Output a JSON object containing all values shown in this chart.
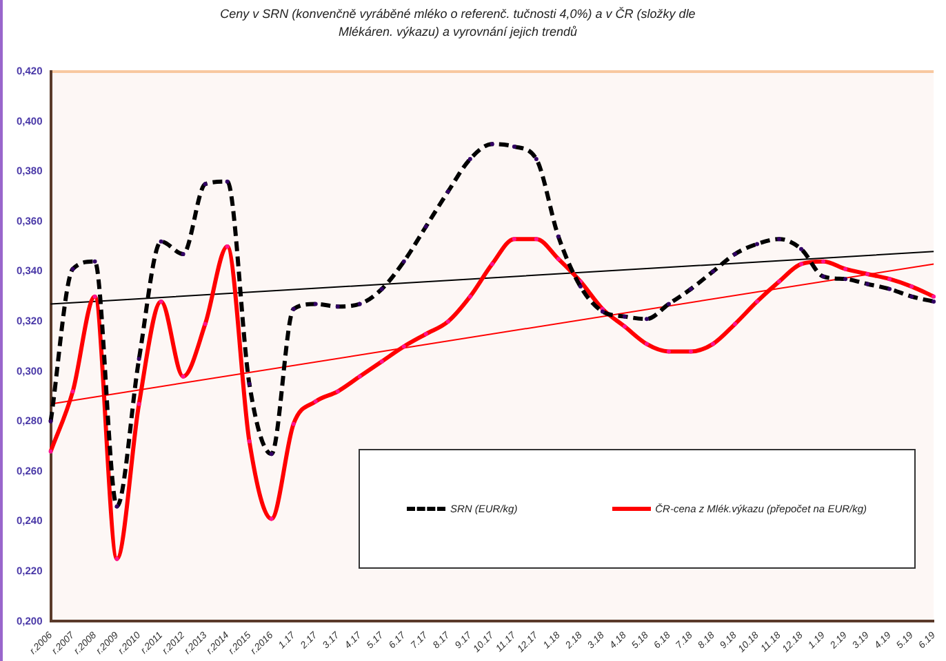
{
  "chart_data": {
    "type": "line",
    "title": "Ceny v SRN (konvenčně vyráběné mléko o referenč. tučnosti 4,0%) a v ČR (složky dle Mlékáren. výkazu) a vyrovnání jejich trendů",
    "categories": [
      "r.2006",
      "r.2007",
      "r.2008",
      "r.2009",
      "r.2010",
      "r.2011",
      "r.2012",
      "r.2013",
      "r.2014",
      "r.2015",
      "r.2016",
      "1.17",
      "2.17",
      "3.17",
      "4.17",
      "5.17",
      "6.17",
      "7.17",
      "8.17",
      "9.17",
      "10.17",
      "11.17",
      "12.17",
      "1.18",
      "2.18",
      "3.18",
      "4.18",
      "5.18",
      "6.18",
      "7.18",
      "8.18",
      "9.18",
      "10.18",
      "11.18",
      "12.18",
      "1.19",
      "2.19",
      "3.19",
      "4.19",
      "5.19",
      "6.19"
    ],
    "series": [
      {
        "name": "SRN (EUR/kg)",
        "color": "#000000",
        "line_style": "dashed",
        "marker": "circle",
        "values": [
          0.28,
          0.341,
          0.344,
          0.246,
          0.305,
          0.352,
          0.347,
          0.375,
          0.376,
          0.295,
          0.267,
          0.325,
          0.327,
          0.326,
          0.327,
          0.333,
          0.344,
          0.358,
          0.372,
          0.385,
          0.391,
          0.39,
          0.385,
          0.354,
          0.334,
          0.324,
          0.322,
          0.321,
          0.327,
          0.333,
          0.34,
          0.347,
          0.351,
          0.353,
          0.349,
          0.338,
          0.337,
          0.335,
          0.333,
          0.33,
          0.328
        ]
      },
      {
        "name": "ČR-cena z Mlék.výkazu (přepočet na EUR/kg)",
        "color": "#ff0000",
        "line_style": "solid",
        "marker": "circle",
        "values": [
          0.268,
          0.292,
          0.33,
          0.225,
          0.287,
          0.328,
          0.298,
          0.319,
          0.35,
          0.272,
          0.241,
          0.279,
          0.288,
          0.292,
          0.298,
          0.304,
          0.31,
          0.315,
          0.32,
          0.33,
          0.343,
          0.353,
          0.353,
          0.345,
          0.336,
          0.325,
          0.318,
          0.311,
          0.308,
          0.308,
          0.311,
          0.319,
          0.328,
          0.336,
          0.343,
          0.344,
          0.341,
          0.339,
          0.337,
          0.334,
          0.33
        ]
      },
      {
        "type": "line",
        "color": "#000000",
        "line_style": "solid",
        "marker": "none",
        "x": [
          "r.2006",
          "6.19"
        ],
        "values": [
          0.327,
          0.348
        ]
      },
      {
        "type": "line",
        "color": "#ff0000",
        "line_style": "solid",
        "marker": "none",
        "x": [
          "r.2006",
          "6.19"
        ],
        "values": [
          0.287,
          0.343
        ]
      }
    ],
    "ylim": [
      0.2,
      0.42
    ],
    "yticks": [
      {
        "value": 0.2,
        "label": "0,200"
      },
      {
        "value": 0.22,
        "label": "0,220"
      },
      {
        "value": 0.24,
        "label": "0,240"
      },
      {
        "value": 0.26,
        "label": "0,260"
      },
      {
        "value": 0.28,
        "label": "0,280"
      },
      {
        "value": 0.3,
        "label": "0,300"
      },
      {
        "value": 0.32,
        "label": "0,320"
      },
      {
        "value": 0.34,
        "label": "0,340"
      },
      {
        "value": 0.36,
        "label": "0,360"
      },
      {
        "value": 0.38,
        "label": "0,380"
      },
      {
        "value": 0.4,
        "label": "0,400"
      },
      {
        "value": 0.42,
        "label": "0,420"
      }
    ],
    "grid": false,
    "legend": "bottom right"
  }
}
